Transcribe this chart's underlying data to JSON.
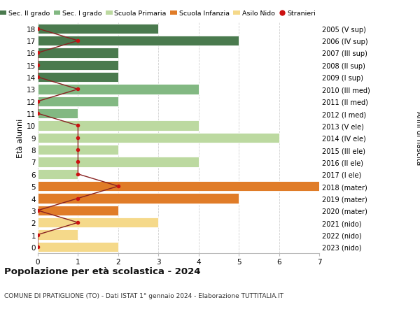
{
  "ages": [
    18,
    17,
    16,
    15,
    14,
    13,
    12,
    11,
    10,
    9,
    8,
    7,
    6,
    5,
    4,
    3,
    2,
    1,
    0
  ],
  "right_labels": [
    "2005 (V sup)",
    "2006 (IV sup)",
    "2007 (III sup)",
    "2008 (II sup)",
    "2009 (I sup)",
    "2010 (III med)",
    "2011 (II med)",
    "2012 (I med)",
    "2013 (V ele)",
    "2014 (IV ele)",
    "2015 (III ele)",
    "2016 (II ele)",
    "2017 (I ele)",
    "2018 (mater)",
    "2019 (mater)",
    "2020 (mater)",
    "2021 (nido)",
    "2022 (nido)",
    "2023 (nido)"
  ],
  "bar_values": [
    3,
    5,
    2,
    2,
    2,
    4,
    2,
    1,
    4,
    6,
    2,
    4,
    1,
    7,
    5,
    2,
    3,
    1,
    2
  ],
  "bar_colors": [
    "#4a7a4e",
    "#4a7a4e",
    "#4a7a4e",
    "#4a7a4e",
    "#4a7a4e",
    "#82b882",
    "#82b882",
    "#82b882",
    "#bcd9a0",
    "#bcd9a0",
    "#bcd9a0",
    "#bcd9a0",
    "#bcd9a0",
    "#e07c28",
    "#e07c28",
    "#e07c28",
    "#f5d98a",
    "#f5d98a",
    "#f5d98a"
  ],
  "stranieri_values": [
    0,
    1,
    0,
    0,
    0,
    1,
    0,
    0,
    1,
    1,
    1,
    1,
    1,
    2,
    1,
    0,
    1,
    0,
    0
  ],
  "legend_labels": [
    "Sec. II grado",
    "Sec. I grado",
    "Scuola Primaria",
    "Scuola Infanzia",
    "Asilo Nido",
    "Stranieri"
  ],
  "legend_colors": [
    "#4a7a4e",
    "#82b882",
    "#bcd9a0",
    "#e07c28",
    "#f5d98a",
    "#cc1111"
  ],
  "title": "Popolazione per età scolastica - 2024",
  "subtitle": "COMUNE DI PRATIGLIONE (TO) - Dati ISTAT 1° gennaio 2024 - Elaborazione TUTTITALIA.IT",
  "ylabel_left": "Età alunni",
  "ylabel_right": "Anni di nascita",
  "xlim": [
    0,
    7
  ],
  "background_color": "#ffffff",
  "grid_color": "#d0d0d0",
  "bar_edge_color": "#ffffff",
  "stranieri_line_color": "#882222",
  "stranieri_dot_color": "#cc1111",
  "bar_height": 0.82
}
